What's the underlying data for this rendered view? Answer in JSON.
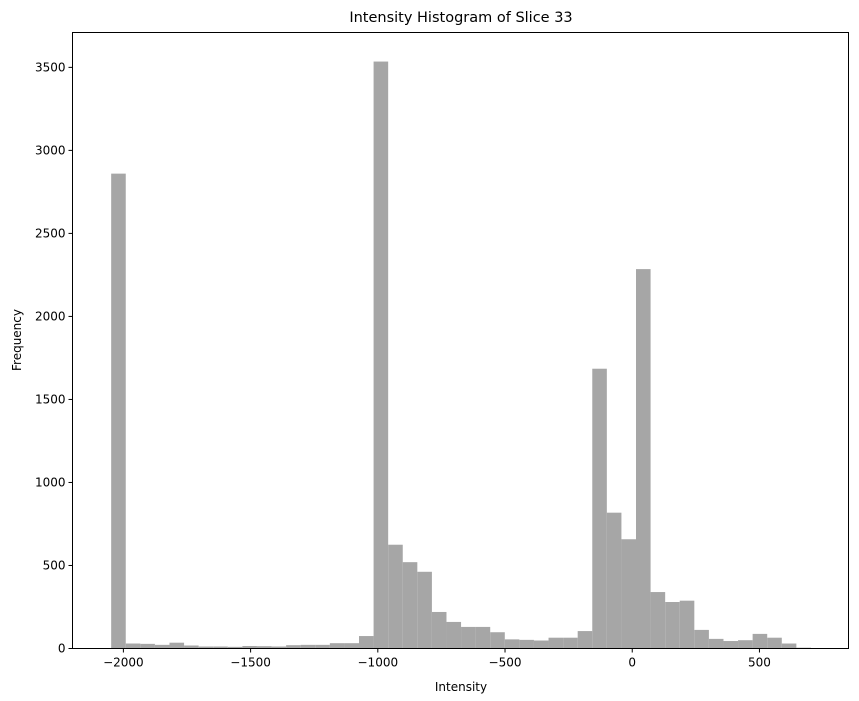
{
  "chart_data": {
    "type": "bar",
    "title": "Intensity Histogram of Slice 33",
    "xlabel": "Intensity",
    "ylabel": "Frequency",
    "xlim": [
      -2200,
      850
    ],
    "ylim": [
      0,
      3710
    ],
    "xticks": [
      -2000,
      -1500,
      -1000,
      -500,
      0,
      500
    ],
    "xtick_labels": [
      "−2000",
      "−1500",
      "−1000",
      "−500",
      "0",
      "500"
    ],
    "yticks": [
      0,
      500,
      1000,
      1500,
      2000,
      2500,
      3000,
      3500
    ],
    "ytick_labels": [
      "0",
      "500",
      "1000",
      "1500",
      "2000",
      "2500",
      "3000",
      "3500"
    ],
    "bar_color": "#a6a6a6",
    "grid": false,
    "bin_width": 57.3,
    "bin_edges_start": -2048,
    "values": [
      2860,
      30,
      28,
      22,
      35,
      18,
      12,
      12,
      10,
      15,
      14,
      12,
      20,
      22,
      22,
      32,
      32,
      75,
      3535,
      625,
      520,
      462,
      220,
      160,
      130,
      130,
      98,
      55,
      52,
      48,
      65,
      65,
      105,
      1685,
      818,
      658,
      2285,
      340,
      280,
      288,
      112,
      58,
      45,
      50,
      88,
      65,
      30,
      5
    ]
  }
}
